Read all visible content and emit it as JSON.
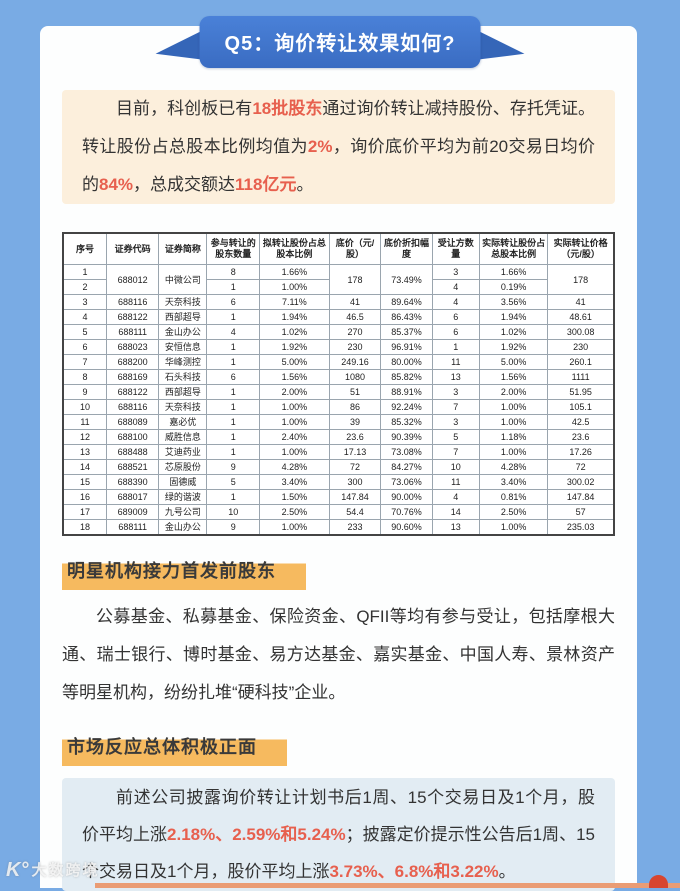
{
  "page": {
    "title": "Q5：询价转让效果如何?",
    "watermark_logo": "K°",
    "watermark": "大数跨境"
  },
  "colors": {
    "frame_blue": "#79abe4",
    "ribbon_blue": "#3e72c6",
    "intro_bg": "#fcefdc",
    "emphasis_red": "#e7604e",
    "section_highlight": "#f6ba5f",
    "bottom_box_bg": "#e2ecf3"
  },
  "intro": {
    "segments": [
      {
        "t": "目前，科创板已有"
      },
      {
        "t": "18批股东",
        "em": true
      },
      {
        "t": "通过询价转让减持股份、存托凭证。转让股份占总股本比例均值为"
      },
      {
        "t": "2%",
        "em": true
      },
      {
        "t": "，询价底价平均为前20交易日均价的"
      },
      {
        "t": "84%",
        "em": true
      },
      {
        "t": "，总成交额达"
      },
      {
        "t": "118亿元",
        "em": true
      },
      {
        "t": "。"
      }
    ]
  },
  "table": {
    "headers": [
      "序号",
      "证券代码",
      "证券简称",
      "参与转让的股东数量",
      "拟转让股份占总股本比例",
      "底价（元/股）",
      "底价折扣幅度",
      "受让方数量",
      "实际转让股份占总股本比例",
      "实际转让价格（元/股）"
    ],
    "col_widths": [
      "7.9%",
      "9.5%",
      "8.7%",
      "9.6%",
      "12.6%",
      "9.4%",
      "9.3%",
      "8.6%",
      "12.4%",
      "12.0%"
    ],
    "merges": [
      {
        "row": 0,
        "col": 1,
        "rowspan": 2
      },
      {
        "row": 0,
        "col": 2,
        "rowspan": 2
      },
      {
        "row": 0,
        "col": 5,
        "rowspan": 2
      },
      {
        "row": 0,
        "col": 6,
        "rowspan": 2
      },
      {
        "row": 0,
        "col": 9,
        "rowspan": 2
      }
    ],
    "rows": [
      [
        "1",
        "688012",
        "中微公司",
        "8",
        "1.66%",
        "178",
        "73.49%",
        "3",
        "1.66%",
        "178"
      ],
      [
        "2",
        null,
        null,
        "1",
        "1.00%",
        null,
        null,
        "4",
        "0.19%",
        null
      ],
      [
        "3",
        "688116",
        "天奈科技",
        "6",
        "7.11%",
        "41",
        "89.64%",
        "4",
        "3.56%",
        "41"
      ],
      [
        "4",
        "688122",
        "西部超导",
        "1",
        "1.94%",
        "46.5",
        "86.43%",
        "6",
        "1.94%",
        "48.61"
      ],
      [
        "5",
        "688111",
        "金山办公",
        "4",
        "1.02%",
        "270",
        "85.37%",
        "6",
        "1.02%",
        "300.08"
      ],
      [
        "6",
        "688023",
        "安恒信息",
        "1",
        "1.92%",
        "230",
        "96.91%",
        "1",
        "1.92%",
        "230"
      ],
      [
        "7",
        "688200",
        "华峰测控",
        "1",
        "5.00%",
        "249.16",
        "80.00%",
        "11",
        "5.00%",
        "260.1"
      ],
      [
        "8",
        "688169",
        "石头科技",
        "6",
        "1.56%",
        "1080",
        "85.82%",
        "13",
        "1.56%",
        "1111"
      ],
      [
        "9",
        "688122",
        "西部超导",
        "1",
        "2.00%",
        "51",
        "88.91%",
        "3",
        "2.00%",
        "51.95"
      ],
      [
        "10",
        "688116",
        "天奈科技",
        "1",
        "1.00%",
        "86",
        "92.24%",
        "7",
        "1.00%",
        "105.1"
      ],
      [
        "11",
        "688089",
        "嘉必优",
        "1",
        "1.00%",
        "39",
        "85.32%",
        "3",
        "1.00%",
        "42.5"
      ],
      [
        "12",
        "688100",
        "威胜信息",
        "1",
        "2.40%",
        "23.6",
        "90.39%",
        "5",
        "1.18%",
        "23.6"
      ],
      [
        "13",
        "688488",
        "艾迪药业",
        "1",
        "1.00%",
        "17.13",
        "73.08%",
        "7",
        "1.00%",
        "17.26"
      ],
      [
        "14",
        "688521",
        "芯原股份",
        "9",
        "4.28%",
        "72",
        "84.27%",
        "10",
        "4.28%",
        "72"
      ],
      [
        "15",
        "688390",
        "固德威",
        "5",
        "3.40%",
        "300",
        "73.06%",
        "11",
        "3.40%",
        "300.02"
      ],
      [
        "16",
        "688017",
        "绿的谐波",
        "1",
        "1.50%",
        "147.84",
        "90.00%",
        "4",
        "0.81%",
        "147.84"
      ],
      [
        "17",
        "689009",
        "九号公司",
        "10",
        "2.50%",
        "54.4",
        "70.76%",
        "14",
        "2.50%",
        "57"
      ],
      [
        "18",
        "688111",
        "金山办公",
        "9",
        "1.00%",
        "233",
        "90.60%",
        "13",
        "1.00%",
        "235.03"
      ]
    ]
  },
  "section1": {
    "title": "明星机构接力首发前股东",
    "segments": [
      {
        "t": "公募基金、私募基金、保险资金、QFII等均有参与受让，包括摩根大通、瑞士银行、博时基金、易方达基金、嘉实基金、中国人寿、景林资产等明星机构，纷纷扎堆“硬科技”企业。"
      }
    ]
  },
  "section2": {
    "title": "市场反应总体积极正面",
    "segments": [
      {
        "t": "前述公司披露询价转让计划书后1周、15个交易日及1个月，股价平均上涨"
      },
      {
        "t": "2.18%、2.59%和5.24%",
        "em": true
      },
      {
        "t": "；披露定价提示性公告后1周、15个交易日及1个月，股价平均上涨"
      },
      {
        "t": "3.73%、6.8%和3.22%",
        "em": true
      },
      {
        "t": "。"
      }
    ]
  }
}
